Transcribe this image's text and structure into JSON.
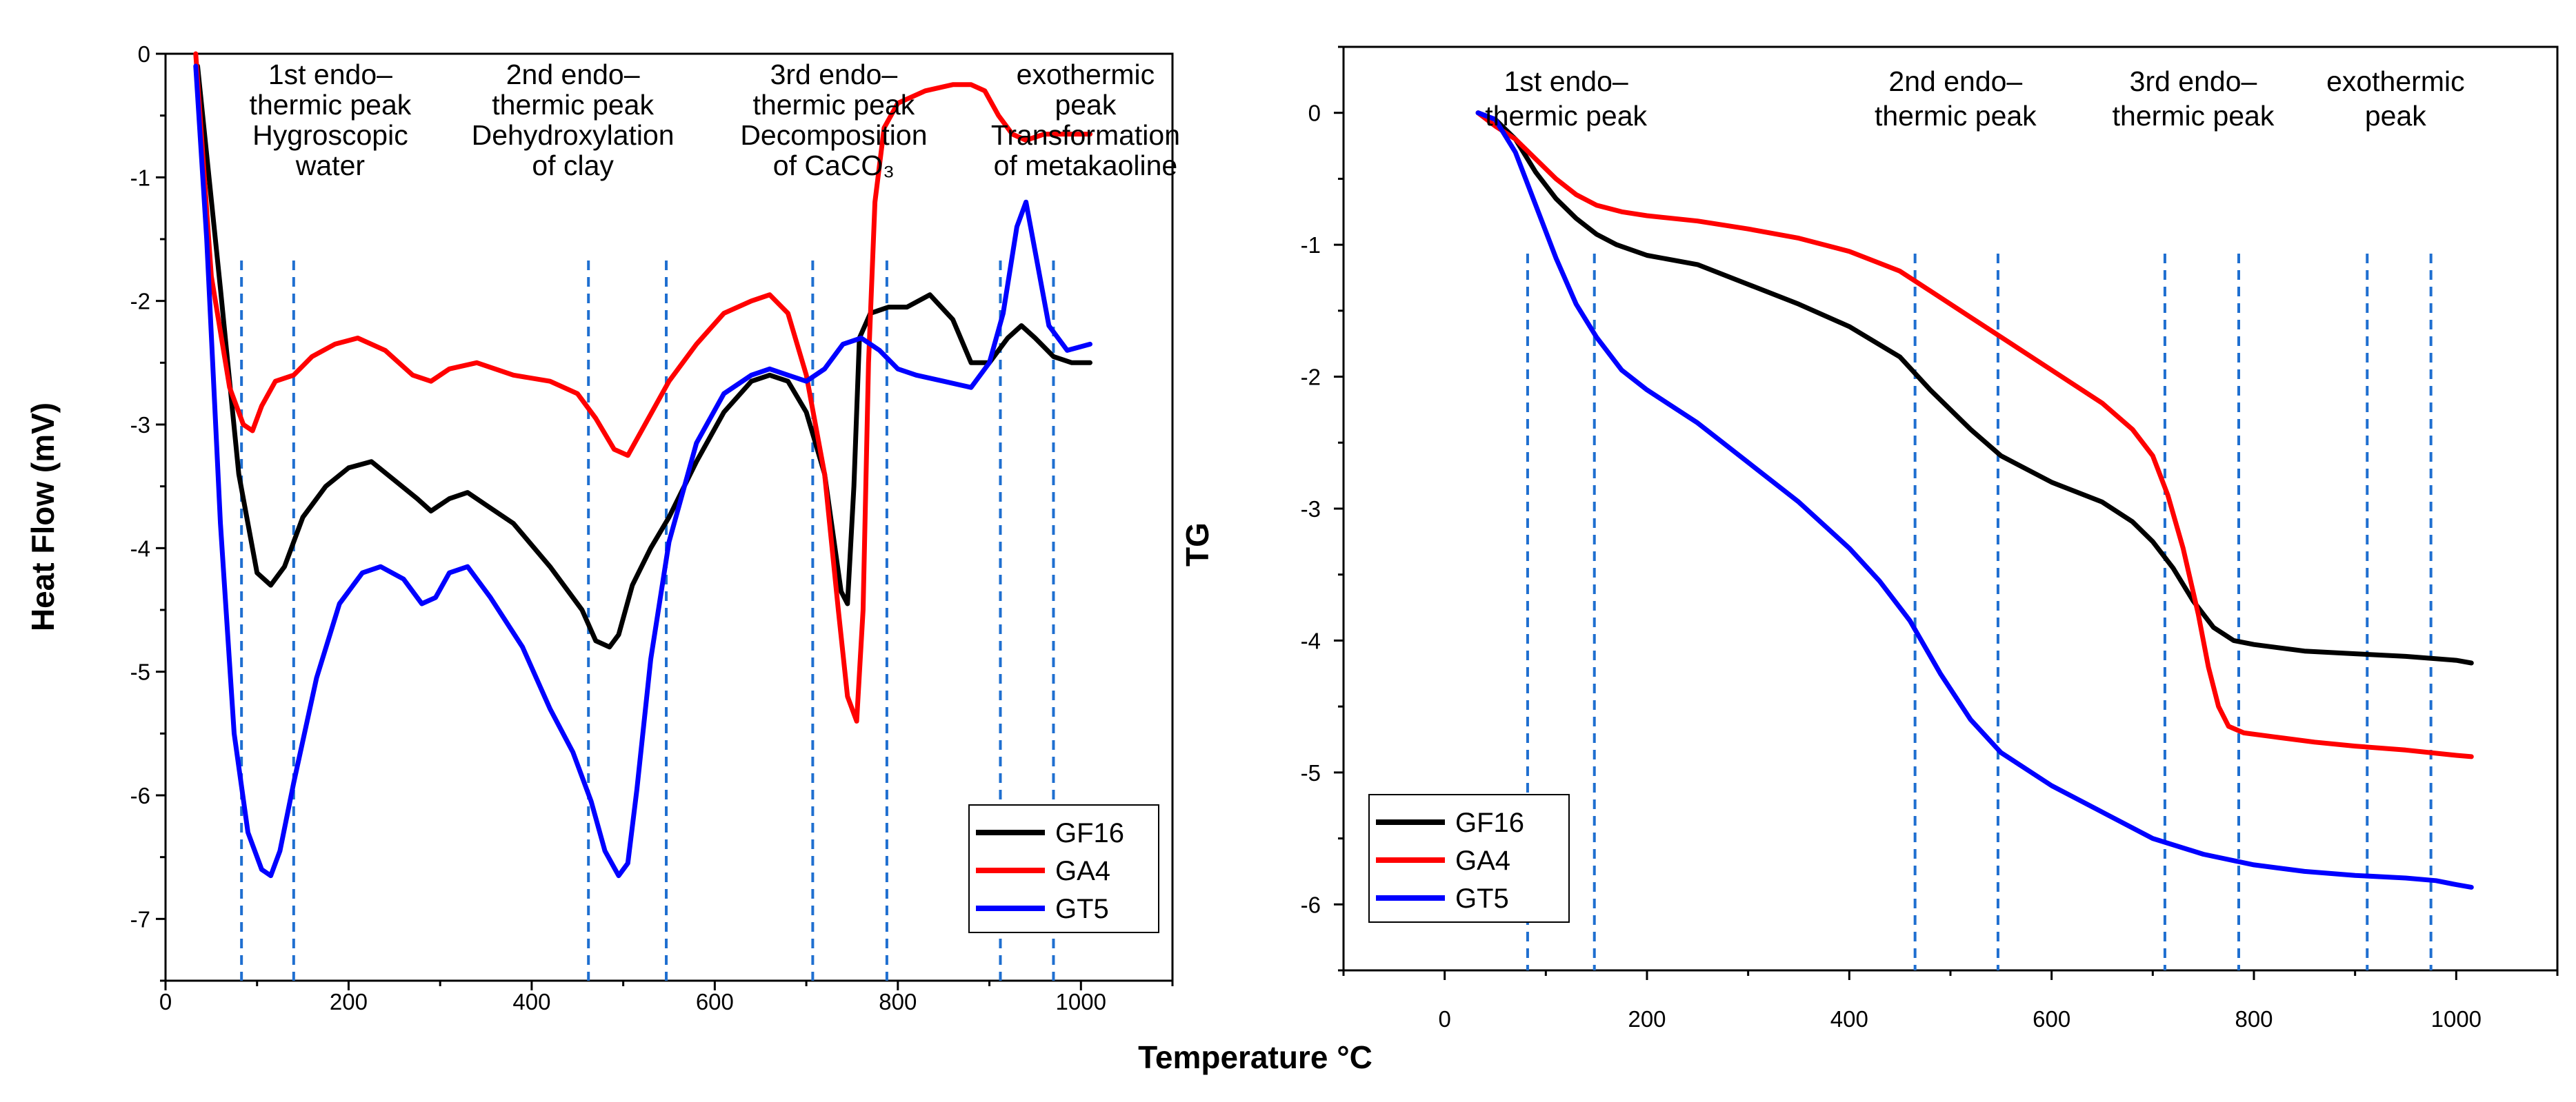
{
  "chart_data": [
    {
      "type": "line",
      "id": "dta",
      "xlabel": "Temperature °C",
      "ylabel": "Heat Flow (mV)",
      "xlim": [
        0,
        1100
      ],
      "ylim": [
        -7.5,
        0
      ],
      "xticks": [
        0,
        200,
        400,
        600,
        800,
        1000
      ],
      "yticks": [
        0,
        -1,
        -2,
        -3,
        -4,
        -5,
        -6,
        -7
      ],
      "legend": {
        "position": "bottom-right",
        "entries": [
          "GF16",
          "GA4",
          "GT5"
        ]
      },
      "guide_lines_x": [
        83,
        140,
        462,
        547,
        707,
        788,
        912,
        970
      ],
      "annotations": [
        {
          "x": 180,
          "lines": [
            "1st endo–",
            "thermic peak",
            "Hygroscopic",
            "water"
          ]
        },
        {
          "x": 445,
          "lines": [
            "2nd endo–",
            "thermic peak",
            "Dehydroxylation",
            "of clay"
          ]
        },
        {
          "x": 730,
          "lines": [
            "3rd endo–",
            "thermic peak",
            "Decomposition",
            "of CaCO₃"
          ]
        },
        {
          "x": 1005,
          "lines": [
            "exothermic",
            "peak",
            "Transformation",
            "of metakaoline"
          ]
        }
      ],
      "series": [
        {
          "name": "GF16",
          "color": "#000000",
          "x": [
            35,
            60,
            80,
            100,
            115,
            130,
            150,
            175,
            200,
            225,
            250,
            275,
            290,
            310,
            330,
            350,
            380,
            420,
            455,
            470,
            485,
            495,
            510,
            530,
            550,
            580,
            610,
            640,
            660,
            680,
            700,
            720,
            738,
            745,
            752,
            758,
            770,
            790,
            810,
            835,
            860,
            880,
            900,
            920,
            935,
            950,
            970,
            990,
            1010
          ],
          "y": [
            -0.1,
            -1.9,
            -3.4,
            -4.2,
            -4.3,
            -4.15,
            -3.75,
            -3.5,
            -3.35,
            -3.3,
            -3.45,
            -3.6,
            -3.7,
            -3.6,
            -3.55,
            -3.65,
            -3.8,
            -4.15,
            -4.5,
            -4.75,
            -4.8,
            -4.7,
            -4.3,
            -4.0,
            -3.75,
            -3.3,
            -2.9,
            -2.65,
            -2.6,
            -2.65,
            -2.9,
            -3.4,
            -4.35,
            -4.45,
            -3.5,
            -2.3,
            -2.1,
            -2.05,
            -2.05,
            -1.95,
            -2.15,
            -2.5,
            -2.5,
            -2.3,
            -2.2,
            -2.3,
            -2.45,
            -2.5,
            -2.5
          ]
        },
        {
          "name": "GA4",
          "color": "#ff0000",
          "x": [
            33,
            50,
            70,
            85,
            95,
            105,
            120,
            140,
            160,
            185,
            210,
            240,
            270,
            290,
            310,
            340,
            380,
            420,
            450,
            470,
            490,
            505,
            520,
            550,
            580,
            610,
            640,
            660,
            680,
            700,
            720,
            735,
            745,
            755,
            762,
            768,
            775,
            785,
            800,
            830,
            860,
            880,
            895,
            910,
            925,
            940,
            960,
            980,
            1000,
            1010
          ],
          "y": [
            0,
            -1.8,
            -2.7,
            -3.0,
            -3.05,
            -2.85,
            -2.65,
            -2.6,
            -2.45,
            -2.35,
            -2.3,
            -2.4,
            -2.6,
            -2.65,
            -2.55,
            -2.5,
            -2.6,
            -2.65,
            -2.75,
            -2.95,
            -3.2,
            -3.25,
            -3.05,
            -2.65,
            -2.35,
            -2.1,
            -2.0,
            -1.95,
            -2.1,
            -2.6,
            -3.4,
            -4.5,
            -5.2,
            -5.4,
            -4.5,
            -2.5,
            -1.2,
            -0.6,
            -0.4,
            -0.3,
            -0.25,
            -0.25,
            -0.3,
            -0.5,
            -0.65,
            -0.7,
            -0.65,
            -0.65,
            -0.65,
            -0.65
          ]
        },
        {
          "name": "GT5",
          "color": "#0000ff",
          "x": [
            33,
            45,
            60,
            75,
            90,
            105,
            115,
            125,
            140,
            165,
            190,
            215,
            235,
            260,
            280,
            295,
            310,
            330,
            355,
            390,
            420,
            445,
            465,
            480,
            495,
            505,
            515,
            530,
            550,
            580,
            610,
            640,
            660,
            680,
            700,
            720,
            740,
            760,
            780,
            800,
            820,
            850,
            880,
            900,
            915,
            930,
            940,
            950,
            965,
            985,
            1010
          ],
          "y": [
            -0.1,
            -1.5,
            -3.8,
            -5.5,
            -6.3,
            -6.6,
            -6.65,
            -6.45,
            -5.9,
            -5.05,
            -4.45,
            -4.2,
            -4.15,
            -4.25,
            -4.45,
            -4.4,
            -4.2,
            -4.15,
            -4.4,
            -4.8,
            -5.3,
            -5.65,
            -6.05,
            -6.45,
            -6.65,
            -6.55,
            -5.95,
            -4.9,
            -3.95,
            -3.15,
            -2.75,
            -2.6,
            -2.55,
            -2.6,
            -2.65,
            -2.55,
            -2.35,
            -2.3,
            -2.4,
            -2.55,
            -2.6,
            -2.65,
            -2.7,
            -2.5,
            -2.1,
            -1.4,
            -1.2,
            -1.6,
            -2.2,
            -2.4,
            -2.35
          ]
        }
      ]
    },
    {
      "type": "line",
      "id": "tg",
      "xlabel": "",
      "ylabel": "TG",
      "xlim": [
        -100,
        1100
      ],
      "ylim": [
        -6.5,
        0.5
      ],
      "xticks": [
        0,
        200,
        400,
        600,
        800,
        1000
      ],
      "yticks": [
        0,
        -1,
        -2,
        -3,
        -4,
        -5,
        -6
      ],
      "legend": {
        "position": "bottom-left",
        "entries": [
          "GF16",
          "GA4",
          "GT5"
        ]
      },
      "guide_lines_x": [
        82,
        148,
        465,
        547,
        712,
        785,
        912,
        975
      ],
      "annotations": [
        {
          "x": 120,
          "lines": [
            "1st endo–",
            "thermic peak"
          ]
        },
        {
          "x": 505,
          "lines": [
            "2nd endo–",
            "thermic peak"
          ]
        },
        {
          "x": 740,
          "lines": [
            "3rd endo–",
            "thermic peak"
          ]
        },
        {
          "x": 940,
          "lines": [
            "exothermic",
            "peak"
          ]
        }
      ],
      "series": [
        {
          "name": "GF16",
          "color": "#000000",
          "x": [
            33,
            50,
            70,
            90,
            110,
            130,
            150,
            170,
            200,
            250,
            300,
            350,
            400,
            450,
            480,
            520,
            550,
            600,
            650,
            680,
            700,
            720,
            740,
            760,
            780,
            800,
            850,
            900,
            950,
            1000,
            1015
          ],
          "y": [
            0,
            -0.05,
            -0.2,
            -0.45,
            -0.65,
            -0.8,
            -0.92,
            -1.0,
            -1.08,
            -1.15,
            -1.3,
            -1.45,
            -1.62,
            -1.85,
            -2.1,
            -2.4,
            -2.6,
            -2.8,
            -2.95,
            -3.1,
            -3.25,
            -3.45,
            -3.7,
            -3.9,
            -4.0,
            -4.03,
            -4.08,
            -4.1,
            -4.12,
            -4.15,
            -4.17
          ]
        },
        {
          "name": "GA4",
          "color": "#ff0000",
          "x": [
            33,
            50,
            70,
            90,
            110,
            130,
            150,
            175,
            200,
            250,
            300,
            350,
            400,
            450,
            480,
            520,
            550,
            600,
            650,
            680,
            700,
            715,
            730,
            745,
            755,
            765,
            775,
            790,
            820,
            860,
            900,
            950,
            1000,
            1015
          ],
          "y": [
            0,
            -0.1,
            -0.2,
            -0.35,
            -0.5,
            -0.62,
            -0.7,
            -0.75,
            -0.78,
            -0.82,
            -0.88,
            -0.95,
            -1.05,
            -1.2,
            -1.35,
            -1.55,
            -1.7,
            -1.95,
            -2.2,
            -2.4,
            -2.6,
            -2.9,
            -3.3,
            -3.8,
            -4.2,
            -4.5,
            -4.65,
            -4.7,
            -4.73,
            -4.77,
            -4.8,
            -4.83,
            -4.87,
            -4.88
          ]
        },
        {
          "name": "GT5",
          "color": "#0000ff",
          "x": [
            33,
            50,
            70,
            90,
            110,
            130,
            150,
            175,
            200,
            250,
            300,
            350,
            400,
            430,
            460,
            490,
            520,
            550,
            600,
            650,
            700,
            750,
            800,
            850,
            900,
            950,
            980,
            1000,
            1015
          ],
          "y": [
            0,
            -0.05,
            -0.3,
            -0.7,
            -1.1,
            -1.45,
            -1.7,
            -1.95,
            -2.1,
            -2.35,
            -2.65,
            -2.95,
            -3.3,
            -3.55,
            -3.85,
            -4.25,
            -4.6,
            -4.85,
            -5.1,
            -5.3,
            -5.5,
            -5.62,
            -5.7,
            -5.75,
            -5.78,
            -5.8,
            -5.82,
            -5.85,
            -5.87
          ]
        }
      ]
    }
  ]
}
